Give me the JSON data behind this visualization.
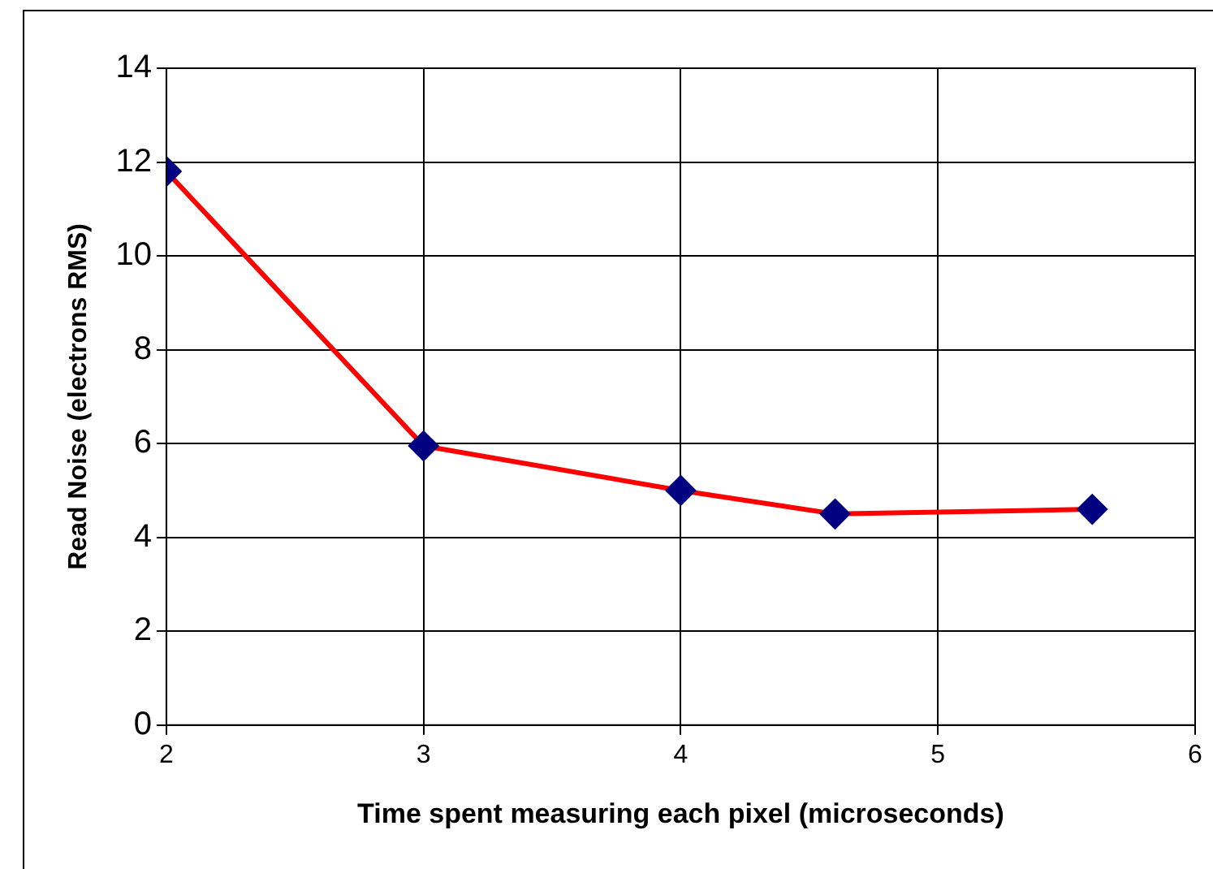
{
  "chart_data": {
    "type": "line",
    "xlabel": "Time spent measuring each pixel (microseconds)",
    "ylabel": "Read Noise (electrons RMS)",
    "x": [
      2,
      3,
      4,
      4.6,
      5.6
    ],
    "series": [
      {
        "color": "#ff0000",
        "values": [
          11.8,
          5.95,
          5,
          4.5,
          4.6
        ]
      }
    ],
    "xlim": [
      2,
      6
    ],
    "xticks": [
      2,
      3,
      4,
      5,
      6
    ],
    "ylim": [
      0,
      14
    ],
    "yticks": [
      0,
      2,
      4,
      6,
      8,
      10,
      12,
      14
    ],
    "grid": true,
    "legend": false,
    "marker": "diamond",
    "line_style": "solid"
  }
}
